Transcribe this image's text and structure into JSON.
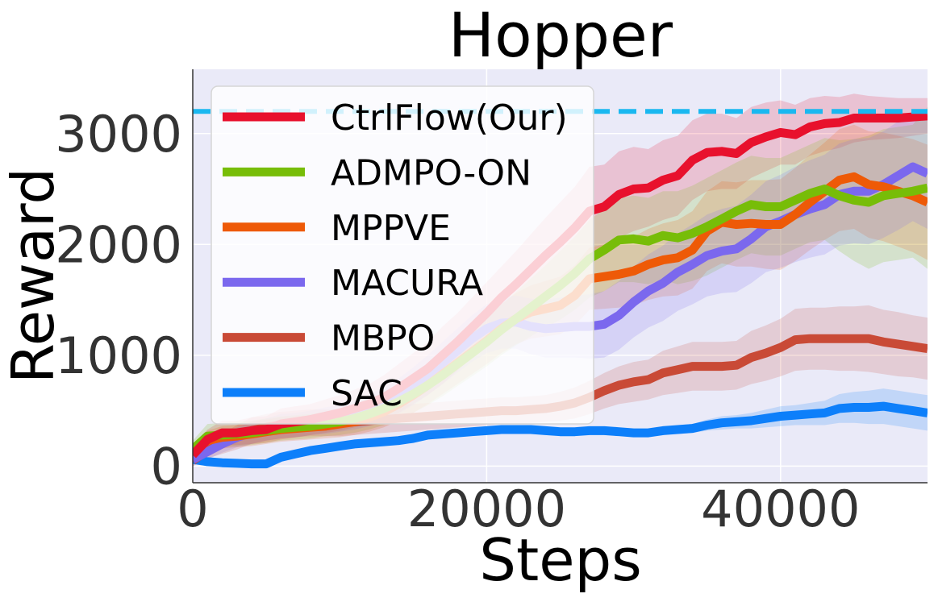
{
  "chart_data": {
    "type": "line",
    "title": "Hopper",
    "xlabel": "Steps",
    "ylabel": "Reward",
    "xlim": [
      0,
      50000
    ],
    "ylim": [
      -150,
      3580
    ],
    "xticks": [
      0,
      20000,
      40000
    ],
    "yticks": [
      0,
      1000,
      2000,
      3000
    ],
    "grid": true,
    "legend": "upper-left",
    "reference_line": {
      "y": 3200,
      "color": "#1ab8f0",
      "style": "dashed"
    },
    "x": [
      0,
      1000,
      2000,
      3000,
      4000,
      5000,
      6000,
      7000,
      8000,
      9000,
      10000,
      11000,
      12000,
      13000,
      14000,
      15000,
      16000,
      17000,
      18000,
      19000,
      20000,
      21000,
      22000,
      23000,
      24000,
      25000,
      26000,
      27000,
      28000,
      29000,
      30000,
      31000,
      32000,
      33000,
      34000,
      35000,
      36000,
      37000,
      38000,
      39000,
      40000,
      41000,
      42000,
      43000,
      44000,
      45000,
      46000,
      47000,
      48000,
      49000,
      50000
    ],
    "series": [
      {
        "name": "CtrlFlow(Our)",
        "color": "#e8112d",
        "values": [
          100,
          240,
          300,
          300,
          320,
          330,
          380,
          400,
          420,
          450,
          480,
          520,
          560,
          620,
          700,
          790,
          880,
          1000,
          1120,
          1250,
          1380,
          1520,
          1640,
          1770,
          1900,
          2020,
          2150,
          2300,
          2340,
          2450,
          2500,
          2510,
          2580,
          2620,
          2760,
          2830,
          2840,
          2820,
          2920,
          2970,
          3010,
          2990,
          3060,
          3090,
          3100,
          3140,
          3140,
          3140,
          3140,
          3150,
          3160
        ],
        "lower": [
          20,
          150,
          190,
          190,
          200,
          210,
          240,
          260,
          280,
          300,
          320,
          350,
          380,
          420,
          480,
          560,
          640,
          740,
          860,
          980,
          1100,
          1230,
          1340,
          1450,
          1560,
          1660,
          1780,
          1900,
          1960,
          2060,
          2120,
          2160,
          2220,
          2260,
          2400,
          2480,
          2500,
          2500,
          2600,
          2660,
          2720,
          2720,
          2800,
          2840,
          2870,
          2920,
          2940,
          2950,
          2960,
          2980,
          3000
        ],
        "upper": [
          180,
          330,
          410,
          410,
          440,
          450,
          520,
          540,
          560,
          600,
          640,
          690,
          740,
          820,
          920,
          1020,
          1120,
          1260,
          1380,
          1520,
          1660,
          1800,
          1940,
          2090,
          2240,
          2380,
          2520,
          2700,
          2720,
          2840,
          2880,
          2860,
          2940,
          2980,
          3120,
          3180,
          3180,
          3140,
          3240,
          3280,
          3300,
          3260,
          3320,
          3340,
          3330,
          3360,
          3340,
          3330,
          3320,
          3320,
          3320
        ]
      },
      {
        "name": "ADMPO-ON",
        "color": "#77bd08",
        "values": [
          150,
          270,
          280,
          290,
          300,
          320,
          340,
          350,
          360,
          380,
          400,
          430,
          470,
          520,
          580,
          650,
          730,
          820,
          920,
          1020,
          1120,
          1230,
          1330,
          1430,
          1530,
          1630,
          1740,
          1870,
          1950,
          2040,
          2050,
          2030,
          2080,
          2060,
          2100,
          2160,
          2230,
          2300,
          2360,
          2340,
          2340,
          2400,
          2460,
          2500,
          2440,
          2400,
          2380,
          2440,
          2460,
          2480,
          2510
        ],
        "lower": [
          70,
          160,
          170,
          180,
          190,
          210,
          230,
          240,
          250,
          270,
          280,
          300,
          330,
          370,
          420,
          480,
          550,
          630,
          720,
          810,
          900,
          1000,
          1090,
          1170,
          1250,
          1320,
          1410,
          1520,
          1580,
          1660,
          1660,
          1640,
          1680,
          1640,
          1670,
          1720,
          1790,
          1860,
          1920,
          1900,
          1900,
          1960,
          2020,
          2040,
          1940,
          1850,
          1780,
          1840,
          1860,
          1880,
          1780
        ],
        "upper": [
          230,
          380,
          390,
          400,
          410,
          430,
          450,
          460,
          470,
          490,
          520,
          560,
          610,
          670,
          740,
          820,
          910,
          1010,
          1120,
          1230,
          1340,
          1460,
          1570,
          1690,
          1810,
          1940,
          2070,
          2220,
          2320,
          2420,
          2440,
          2420,
          2480,
          2480,
          2530,
          2600,
          2670,
          2740,
          2800,
          2780,
          2780,
          2840,
          2900,
          2960,
          2940,
          2950,
          2980,
          3040,
          3060,
          3080,
          3240
        ]
      },
      {
        "name": "MPPVE",
        "color": "#ee5a07",
        "values": [
          120,
          230,
          260,
          270,
          290,
          310,
          330,
          340,
          350,
          360,
          380,
          400,
          440,
          490,
          560,
          640,
          730,
          830,
          930,
          1030,
          1130,
          1240,
          1330,
          1390,
          1420,
          1450,
          1540,
          1690,
          1710,
          1730,
          1760,
          1820,
          1860,
          1880,
          1950,
          2120,
          2200,
          2180,
          2190,
          2180,
          2180,
          2270,
          2380,
          2480,
          2580,
          2610,
          2540,
          2520,
          2480,
          2440,
          2380
        ],
        "lower": [
          50,
          140,
          160,
          170,
          180,
          200,
          220,
          230,
          240,
          250,
          260,
          280,
          310,
          350,
          410,
          480,
          560,
          650,
          740,
          830,
          920,
          1020,
          1100,
          1150,
          1170,
          1190,
          1270,
          1410,
          1420,
          1430,
          1450,
          1500,
          1530,
          1540,
          1600,
          1760,
          1830,
          1800,
          1800,
          1780,
          1770,
          1850,
          1950,
          2040,
          2120,
          2140,
          2060,
          2030,
          1980,
          1930,
          1860
        ],
        "upper": [
          190,
          320,
          360,
          370,
          400,
          420,
          440,
          450,
          460,
          470,
          500,
          520,
          570,
          630,
          710,
          800,
          900,
          1010,
          1120,
          1230,
          1340,
          1460,
          1560,
          1630,
          1670,
          1710,
          1810,
          1970,
          2000,
          2030,
          2070,
          2140,
          2190,
          2220,
          2300,
          2480,
          2570,
          2560,
          2580,
          2580,
          2590,
          2690,
          2810,
          2920,
          3040,
          3080,
          3020,
          3010,
          2980,
          2950,
          2900
        ]
      },
      {
        "name": "MACURA",
        "color": "#7b68ee",
        "values": [
          60,
          130,
          200,
          260,
          300,
          330,
          360,
          370,
          390,
          410,
          430,
          460,
          500,
          560,
          630,
          720,
          820,
          930,
          1040,
          1150,
          1240,
          1290,
          1300,
          1260,
          1240,
          1250,
          1260,
          1260,
          1280,
          1360,
          1480,
          1580,
          1650,
          1750,
          1820,
          1900,
          1940,
          1960,
          2050,
          2160,
          2210,
          2270,
          2320,
          2360,
          2450,
          2480,
          2480,
          2540,
          2620,
          2700,
          2640
        ],
        "lower": [
          0,
          60,
          120,
          170,
          200,
          230,
          250,
          260,
          280,
          290,
          310,
          330,
          360,
          410,
          470,
          550,
          640,
          740,
          840,
          940,
          1020,
          1060,
          1060,
          1010,
          980,
          980,
          980,
          970,
          980,
          1050,
          1160,
          1250,
          1310,
          1400,
          1460,
          1530,
          1560,
          1570,
          1650,
          1750,
          1790,
          1840,
          1880,
          1910,
          1990,
          2010,
          2000,
          2060,
          2130,
          2210,
          2140
        ],
        "upper": [
          120,
          200,
          280,
          350,
          400,
          430,
          470,
          480,
          500,
          530,
          550,
          590,
          640,
          710,
          790,
          890,
          1000,
          1120,
          1240,
          1360,
          1460,
          1520,
          1540,
          1510,
          1500,
          1520,
          1540,
          1550,
          1580,
          1670,
          1800,
          1910,
          1990,
          2100,
          2180,
          2270,
          2320,
          2350,
          2450,
          2570,
          2630,
          2700,
          2760,
          2810,
          2910,
          2950,
          2960,
          3020,
          3110,
          3190,
          3140
        ]
      },
      {
        "name": "MBPO",
        "color": "#c94a36",
        "values": [
          50,
          140,
          200,
          260,
          320,
          350,
          370,
          380,
          390,
          390,
          390,
          400,
          410,
          420,
          430,
          440,
          450,
          460,
          470,
          480,
          490,
          500,
          500,
          510,
          520,
          540,
          570,
          620,
          680,
          730,
          760,
          780,
          840,
          870,
          900,
          900,
          900,
          910,
          980,
          1020,
          1070,
          1140,
          1150,
          1150,
          1150,
          1150,
          1150,
          1120,
          1100,
          1080,
          1060
        ],
        "lower": [
          0,
          70,
          110,
          150,
          200,
          230,
          250,
          260,
          270,
          270,
          270,
          280,
          290,
          300,
          310,
          320,
          330,
          340,
          350,
          360,
          370,
          380,
          380,
          390,
          400,
          410,
          430,
          470,
          520,
          560,
          580,
          600,
          640,
          660,
          680,
          680,
          680,
          690,
          740,
          770,
          810,
          860,
          870,
          870,
          860,
          860,
          850,
          830,
          810,
          800,
          780
        ],
        "upper": [
          100,
          210,
          290,
          370,
          440,
          470,
          490,
          500,
          510,
          510,
          510,
          520,
          530,
          540,
          550,
          560,
          570,
          580,
          590,
          600,
          610,
          620,
          620,
          630,
          640,
          670,
          710,
          770,
          840,
          900,
          940,
          960,
          1040,
          1080,
          1120,
          1120,
          1120,
          1130,
          1220,
          1270,
          1330,
          1420,
          1430,
          1430,
          1440,
          1440,
          1450,
          1410,
          1390,
          1360,
          1340
        ]
      },
      {
        "name": "SAC",
        "color": "#0d7ffa",
        "values": [
          60,
          40,
          30,
          25,
          20,
          20,
          80,
          110,
          140,
          160,
          180,
          200,
          210,
          220,
          230,
          250,
          280,
          290,
          300,
          310,
          320,
          330,
          330,
          330,
          320,
          310,
          310,
          320,
          320,
          310,
          300,
          300,
          320,
          330,
          340,
          370,
          390,
          400,
          410,
          430,
          450,
          460,
          470,
          480,
          520,
          530,
          530,
          540,
          520,
          500,
          480
        ],
        "lower": [
          30,
          10,
          0,
          0,
          0,
          0,
          50,
          80,
          110,
          130,
          150,
          170,
          180,
          190,
          200,
          220,
          250,
          260,
          270,
          280,
          290,
          300,
          300,
          300,
          290,
          280,
          280,
          290,
          290,
          280,
          270,
          270,
          290,
          290,
          300,
          320,
          330,
          340,
          340,
          350,
          360,
          370,
          370,
          370,
          390,
          390,
          380,
          380,
          360,
          340,
          320
        ],
        "upper": [
          90,
          70,
          60,
          50,
          40,
          40,
          110,
          140,
          170,
          190,
          210,
          230,
          240,
          250,
          260,
          280,
          310,
          320,
          330,
          340,
          350,
          360,
          360,
          360,
          350,
          340,
          340,
          350,
          350,
          340,
          330,
          330,
          350,
          370,
          380,
          420,
          450,
          460,
          480,
          510,
          540,
          550,
          570,
          590,
          650,
          670,
          680,
          700,
          680,
          660,
          640
        ]
      }
    ]
  }
}
